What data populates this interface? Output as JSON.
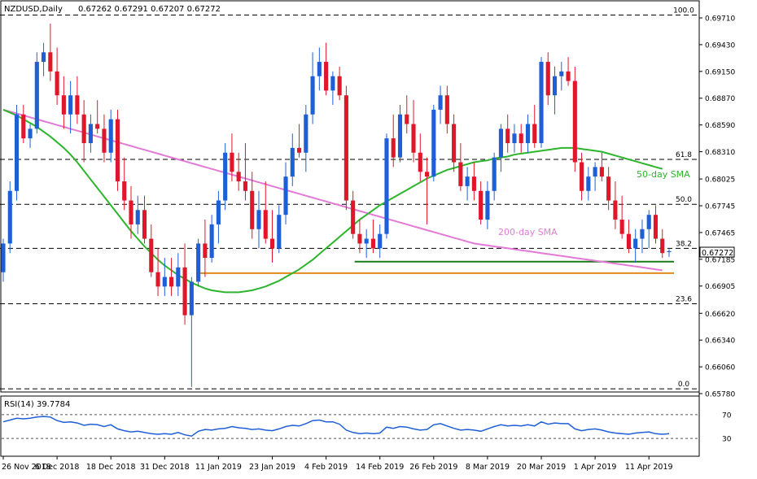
{
  "header": {
    "symbol": "NZDUSD,Daily",
    "ohlc": "0.67262 0.67291 0.67207 0.67272"
  },
  "price_axis": {
    "ticks": [
      "0.69710",
      "0.69430",
      "0.69150",
      "0.68870",
      "0.68590",
      "0.68310",
      "0.68025",
      "0.67745",
      "0.67465",
      "0.67185",
      "0.66905",
      "0.66620",
      "0.66340",
      "0.66060",
      "0.65780"
    ],
    "ticks_num": [
      0.6971,
      0.6943,
      0.6915,
      0.6887,
      0.6859,
      0.6831,
      0.68025,
      0.67745,
      0.67465,
      0.67185,
      0.66905,
      0.6662,
      0.6634,
      0.6606,
      0.6578
    ],
    "current_price": "0.67272",
    "range": [
      0.6578,
      0.6988
    ]
  },
  "rsi": {
    "label": "RSI(14) 39.7784",
    "ticks": [
      "70",
      "30"
    ],
    "levels": [
      70,
      30
    ]
  },
  "date_axis": {
    "labels": [
      "26 Nov 2018",
      "6 Dec 2018",
      "18 Dec 2018",
      "31 Dec 2018",
      "11 Jan 2019",
      "23 Jan 2019",
      "4 Feb 2019",
      "14 Feb 2019",
      "26 Feb 2019",
      "8 Mar 2019",
      "20 Mar 2019",
      "1 Apr 2019",
      "11 Apr 2019"
    ],
    "label_bars": [
      0,
      8,
      16,
      24,
      32,
      40,
      48,
      56,
      64,
      72,
      80,
      88,
      96
    ]
  },
  "fib_levels": [
    {
      "label": "100.0",
      "price": 0.6974
    },
    {
      "label": "61.8",
      "price": 0.6823
    },
    {
      "label": "50.0",
      "price": 0.6776
    },
    {
      "label": "38.2",
      "price": 0.673
    },
    {
      "label": "23.6",
      "price": 0.6672
    },
    {
      "label": "0.0",
      "price": 0.6583
    }
  ],
  "annotations": {
    "sma50_label": "50-day SMA",
    "sma200_label": "200-day SMA"
  },
  "support_lines": [
    {
      "color": "#1a7a1a",
      "price": 0.6716,
      "from_bar": 52,
      "to_bar": 99
    },
    {
      "color": "#e08a1a",
      "price": 0.6704,
      "from_bar": 29,
      "to_bar": 99
    }
  ],
  "colors": {
    "bull": "#1f5fd6",
    "bear": "#e0162b",
    "sma50": "#2db52d",
    "sma200": "#e27ad6",
    "rsi": "#1f5fd6",
    "grid": "#000000",
    "price_tag_bg": "#ffffff"
  },
  "chart_data": {
    "type": "candlestick",
    "title": "NZDUSD,Daily",
    "ylim": [
      0.6578,
      0.6988
    ],
    "ohlc": [
      [
        0.6705,
        0.674,
        0.6695,
        0.6735
      ],
      [
        0.6735,
        0.68,
        0.6725,
        0.679
      ],
      [
        0.679,
        0.688,
        0.678,
        0.687
      ],
      [
        0.687,
        0.688,
        0.684,
        0.6845
      ],
      [
        0.6845,
        0.686,
        0.6835,
        0.6855
      ],
      [
        0.6855,
        0.6935,
        0.685,
        0.6925
      ],
      [
        0.6925,
        0.6945,
        0.691,
        0.6935
      ],
      [
        0.6935,
        0.6965,
        0.6905,
        0.6915
      ],
      [
        0.6915,
        0.694,
        0.688,
        0.689
      ],
      [
        0.689,
        0.691,
        0.6855,
        0.687
      ],
      [
        0.687,
        0.6905,
        0.685,
        0.689
      ],
      [
        0.689,
        0.691,
        0.686,
        0.687
      ],
      [
        0.687,
        0.6885,
        0.682,
        0.684
      ],
      [
        0.684,
        0.687,
        0.683,
        0.686
      ],
      [
        0.686,
        0.6885,
        0.685,
        0.6855
      ],
      [
        0.6855,
        0.687,
        0.682,
        0.683
      ],
      [
        0.683,
        0.6875,
        0.682,
        0.6865
      ],
      [
        0.6865,
        0.6875,
        0.679,
        0.68
      ],
      [
        0.68,
        0.6825,
        0.677,
        0.678
      ],
      [
        0.678,
        0.6795,
        0.674,
        0.6755
      ],
      [
        0.6755,
        0.6785,
        0.6745,
        0.677
      ],
      [
        0.677,
        0.6785,
        0.6735,
        0.674
      ],
      [
        0.674,
        0.6755,
        0.67,
        0.6705
      ],
      [
        0.6705,
        0.673,
        0.668,
        0.669
      ],
      [
        0.669,
        0.672,
        0.668,
        0.67
      ],
      [
        0.67,
        0.672,
        0.668,
        0.669
      ],
      [
        0.669,
        0.6725,
        0.668,
        0.671
      ],
      [
        0.671,
        0.6735,
        0.665,
        0.666
      ],
      [
        0.666,
        0.67,
        0.6585,
        0.6695
      ],
      [
        0.6695,
        0.674,
        0.669,
        0.6735
      ],
      [
        0.6735,
        0.676,
        0.67,
        0.672
      ],
      [
        0.672,
        0.6765,
        0.6715,
        0.6755
      ],
      [
        0.6755,
        0.679,
        0.6735,
        0.678
      ],
      [
        0.678,
        0.684,
        0.677,
        0.683
      ],
      [
        0.683,
        0.685,
        0.68,
        0.681
      ],
      [
        0.681,
        0.683,
        0.679,
        0.68
      ],
      [
        0.68,
        0.684,
        0.678,
        0.679
      ],
      [
        0.679,
        0.681,
        0.674,
        0.675
      ],
      [
        0.675,
        0.679,
        0.673,
        0.677
      ],
      [
        0.677,
        0.68,
        0.6735,
        0.674
      ],
      [
        0.674,
        0.677,
        0.6715,
        0.673
      ],
      [
        0.673,
        0.6775,
        0.6725,
        0.6765
      ],
      [
        0.6765,
        0.682,
        0.6755,
        0.6805
      ],
      [
        0.6805,
        0.685,
        0.6795,
        0.6835
      ],
      [
        0.6835,
        0.686,
        0.6825,
        0.683
      ],
      [
        0.683,
        0.688,
        0.681,
        0.687
      ],
      [
        0.687,
        0.6935,
        0.686,
        0.691
      ],
      [
        0.691,
        0.694,
        0.6895,
        0.6925
      ],
      [
        0.6925,
        0.6945,
        0.689,
        0.6895
      ],
      [
        0.6895,
        0.6915,
        0.688,
        0.691
      ],
      [
        0.691,
        0.692,
        0.6885,
        0.689
      ],
      [
        0.689,
        0.69,
        0.677,
        0.678
      ],
      [
        0.678,
        0.679,
        0.674,
        0.6745
      ],
      [
        0.6745,
        0.676,
        0.6725,
        0.6735
      ],
      [
        0.6735,
        0.675,
        0.672,
        0.674
      ],
      [
        0.674,
        0.676,
        0.6725,
        0.673
      ],
      [
        0.673,
        0.6755,
        0.672,
        0.6745
      ],
      [
        0.6745,
        0.685,
        0.674,
        0.6845
      ],
      [
        0.6845,
        0.687,
        0.6815,
        0.6825
      ],
      [
        0.6825,
        0.688,
        0.682,
        0.687
      ],
      [
        0.687,
        0.689,
        0.685,
        0.686
      ],
      [
        0.686,
        0.6885,
        0.682,
        0.683
      ],
      [
        0.683,
        0.685,
        0.68,
        0.681
      ],
      [
        0.681,
        0.6825,
        0.6755,
        0.6805
      ],
      [
        0.6805,
        0.688,
        0.68,
        0.6875
      ],
      [
        0.6875,
        0.69,
        0.686,
        0.689
      ],
      [
        0.689,
        0.69,
        0.685,
        0.686
      ],
      [
        0.686,
        0.687,
        0.681,
        0.682
      ],
      [
        0.682,
        0.684,
        0.679,
        0.6795
      ],
      [
        0.6795,
        0.6815,
        0.678,
        0.6805
      ],
      [
        0.6805,
        0.682,
        0.678,
        0.679
      ],
      [
        0.679,
        0.68,
        0.6755,
        0.676
      ],
      [
        0.676,
        0.68,
        0.675,
        0.679
      ],
      [
        0.679,
        0.683,
        0.678,
        0.6825
      ],
      [
        0.6825,
        0.686,
        0.681,
        0.6855
      ],
      [
        0.6855,
        0.687,
        0.683,
        0.684
      ],
      [
        0.684,
        0.686,
        0.683,
        0.685
      ],
      [
        0.685,
        0.686,
        0.683,
        0.684
      ],
      [
        0.684,
        0.687,
        0.683,
        0.686
      ],
      [
        0.686,
        0.688,
        0.6835,
        0.684
      ],
      [
        0.684,
        0.693,
        0.6835,
        0.6925
      ],
      [
        0.6925,
        0.6935,
        0.688,
        0.689
      ],
      [
        0.689,
        0.692,
        0.687,
        0.691
      ],
      [
        0.691,
        0.6925,
        0.6895,
        0.6915
      ],
      [
        0.6915,
        0.693,
        0.69,
        0.6905
      ],
      [
        0.6905,
        0.692,
        0.681,
        0.682
      ],
      [
        0.682,
        0.683,
        0.678,
        0.679
      ],
      [
        0.679,
        0.6815,
        0.678,
        0.6805
      ],
      [
        0.6805,
        0.682,
        0.679,
        0.6815
      ],
      [
        0.6815,
        0.683,
        0.68,
        0.6805
      ],
      [
        0.6805,
        0.6815,
        0.677,
        0.678
      ],
      [
        0.678,
        0.68,
        0.675,
        0.676
      ],
      [
        0.676,
        0.6785,
        0.674,
        0.6745
      ],
      [
        0.6745,
        0.676,
        0.6725,
        0.673
      ],
      [
        0.673,
        0.675,
        0.6715,
        0.674
      ],
      [
        0.674,
        0.676,
        0.6725,
        0.675
      ],
      [
        0.675,
        0.677,
        0.673,
        0.6765
      ],
      [
        0.6765,
        0.6775,
        0.6735,
        0.674
      ],
      [
        0.674,
        0.675,
        0.672,
        0.6725
      ],
      [
        0.6726,
        0.6729,
        0.6721,
        0.6727
      ]
    ],
    "sma50": [
      0.6875,
      0.6872,
      0.6869,
      0.6865,
      0.6861,
      0.6857,
      0.6852,
      0.6847,
      0.6841,
      0.6835,
      0.6828,
      0.682,
      0.6811,
      0.6802,
      0.6793,
      0.6784,
      0.6775,
      0.6766,
      0.6757,
      0.6748,
      0.674,
      0.6732,
      0.6725,
      0.6718,
      0.6712,
      0.6707,
      0.6702,
      0.6698,
      0.6694,
      0.6691,
      0.6688,
      0.6686,
      0.6685,
      0.6684,
      0.6684,
      0.6684,
      0.6685,
      0.6686,
      0.6688,
      0.669,
      0.6693,
      0.6696,
      0.67,
      0.6704,
      0.6708,
      0.6713,
      0.6718,
      0.6724,
      0.673,
      0.6736,
      0.6742,
      0.6748,
      0.6754,
      0.676,
      0.6765,
      0.677,
      0.6775,
      0.6779,
      0.6783,
      0.6787,
      0.6791,
      0.6795,
      0.6799,
      0.6803,
      0.6806,
      0.6809,
      0.6812,
      0.6814,
      0.6816,
      0.6818,
      0.682,
      0.6821,
      0.6822,
      0.6824,
      0.6825,
      0.6826,
      0.6828,
      0.6829,
      0.683,
      0.6831,
      0.6832,
      0.6833,
      0.6834,
      0.6835,
      0.6835,
      0.6835,
      0.6834,
      0.6833,
      0.6832,
      0.6831,
      0.6829,
      0.6827,
      0.6825,
      0.6823,
      0.6821,
      0.6819,
      0.6817,
      0.6815,
      0.6813
    ],
    "sma200": [
      0.6875,
      0.6873,
      0.6871,
      0.6869,
      0.6867,
      0.6865,
      0.6863,
      0.6861,
      0.6859,
      0.6857,
      0.6855,
      0.6853,
      0.6851,
      0.6849,
      0.6847,
      0.6845,
      0.6843,
      0.6841,
      0.6839,
      0.6837,
      0.6835,
      0.6833,
      0.6831,
      0.6829,
      0.6827,
      0.6825,
      0.6823,
      0.6821,
      0.6819,
      0.6817,
      0.6815,
      0.6813,
      0.6811,
      0.6809,
      0.6807,
      0.6805,
      0.6803,
      0.6801,
      0.6799,
      0.6797,
      0.6795,
      0.6793,
      0.6791,
      0.6789,
      0.6787,
      0.6785,
      0.6783,
      0.6781,
      0.6779,
      0.6777,
      0.6775,
      0.6773,
      0.6771,
      0.6769,
      0.6767,
      0.6765,
      0.6763,
      0.6761,
      0.6759,
      0.6757,
      0.6755,
      0.6753,
      0.6751,
      0.6749,
      0.6747,
      0.6745,
      0.6743,
      0.6741,
      0.6739,
      0.6737,
      0.6735,
      0.6734,
      0.6733,
      0.6732,
      0.6731,
      0.673,
      0.6729,
      0.6728,
      0.6727,
      0.6726,
      0.6725,
      0.6724,
      0.6723,
      0.6722,
      0.6721,
      0.672,
      0.6719,
      0.6718,
      0.6717,
      0.6716,
      0.6715,
      0.6714,
      0.6713,
      0.6712,
      0.6711,
      0.671,
      0.6709,
      0.6708,
      0.6707
    ],
    "rsi_values": [
      58,
      61,
      64,
      63,
      64,
      66,
      67,
      66,
      60,
      57,
      58,
      56,
      52,
      54,
      53,
      50,
      53,
      46,
      43,
      41,
      42,
      40,
      38,
      37,
      38,
      37,
      40,
      36,
      34,
      42,
      45,
      44,
      46,
      47,
      50,
      48,
      47,
      45,
      46,
      44,
      43,
      46,
      50,
      52,
      51,
      55,
      60,
      61,
      58,
      58,
      54,
      44,
      40,
      38,
      39,
      38,
      39,
      49,
      47,
      50,
      49,
      46,
      44,
      45,
      53,
      55,
      51,
      47,
      44,
      45,
      44,
      42,
      46,
      50,
      53,
      51,
      52,
      51,
      53,
      51,
      58,
      54,
      56,
      55,
      55,
      46,
      43,
      45,
      46,
      44,
      41,
      39,
      38,
      37,
      39,
      40,
      41,
      38,
      37,
      38
    ]
  }
}
